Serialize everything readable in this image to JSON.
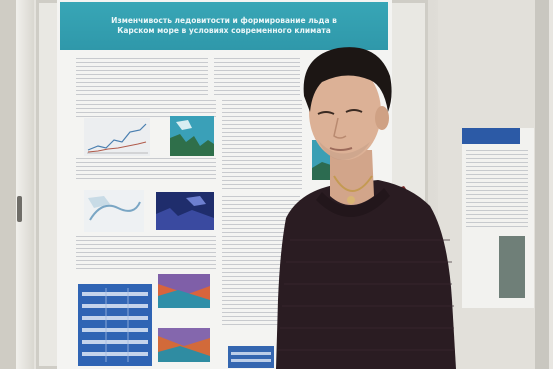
{
  "photo": {
    "poster_title_lines": [
      "Изменчивость ледовитости и формирование льда в",
      "Карском море в условиях современного климата"
    ]
  },
  "colors": {
    "poster_header": "#2f98aa",
    "sweater": "#2a1c22",
    "backpack_strap": "#7a2a2a",
    "table_blue": "#2f64b4"
  }
}
